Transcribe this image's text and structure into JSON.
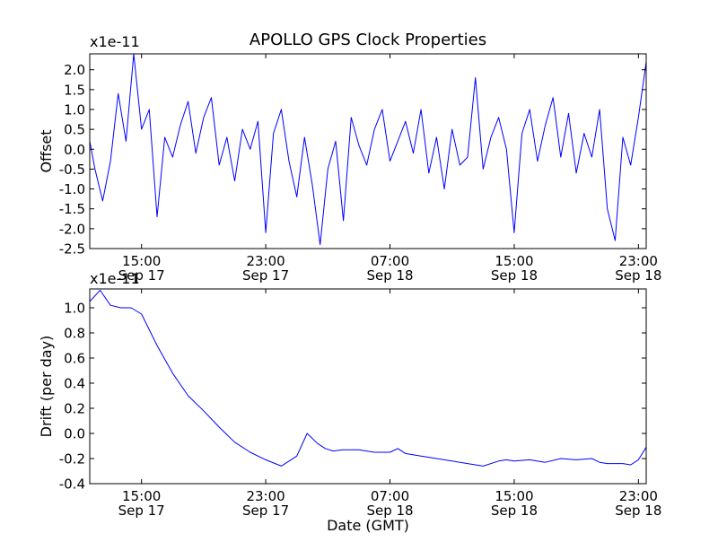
{
  "figure": {
    "title": "APOLLO GPS Clock Properties",
    "xlabel": "Date (GMT)"
  },
  "chart_data": [
    {
      "type": "line",
      "title": "APOLLO GPS Clock Properties",
      "xlabel": "",
      "ylabel": "Offset",
      "scale_label": "x1e-11",
      "line_color": "#0000ff",
      "xlim": [
        "2012-09-17 11:40",
        "2012-09-18 23:30"
      ],
      "ylim": [
        -2.5,
        2.4
      ],
      "xticks": [
        {
          "value": "2012-09-17 15:00",
          "time": "15:00",
          "date": "Sep 17"
        },
        {
          "value": "2012-09-17 23:00",
          "time": "23:00",
          "date": "Sep 17"
        },
        {
          "value": "2012-09-18 07:00",
          "time": "07:00",
          "date": "Sep 18"
        },
        {
          "value": "2012-09-18 15:00",
          "time": "15:00",
          "date": "Sep 18"
        },
        {
          "value": "2012-09-18 23:00",
          "time": "23:00",
          "date": "Sep 18"
        }
      ],
      "yticks": [
        -2.5,
        -2.0,
        -1.5,
        -1.0,
        -0.5,
        0.0,
        0.5,
        1.0,
        1.5,
        2.0
      ],
      "ytick_labels": [
        "-2.5",
        "-2.0",
        "-1.5",
        "-1.0",
        "-0.5",
        "0.0",
        "0.5",
        "1.0",
        "1.5",
        "2.0"
      ],
      "grid": false,
      "series": [
        {
          "x": [
            "2012-09-17 11:40",
            "2012-09-17 12:00",
            "2012-09-17 12:30",
            "2012-09-17 13:00",
            "2012-09-17 13:30",
            "2012-09-17 14:00",
            "2012-09-17 14:30",
            "2012-09-17 15:00",
            "2012-09-17 15:30",
            "2012-09-17 16:00",
            "2012-09-17 16:30",
            "2012-09-17 17:00",
            "2012-09-17 17:30",
            "2012-09-17 18:00",
            "2012-09-17 18:30",
            "2012-09-17 19:00",
            "2012-09-17 19:30",
            "2012-09-17 20:00",
            "2012-09-17 20:30",
            "2012-09-17 21:00",
            "2012-09-17 21:30",
            "2012-09-17 22:00",
            "2012-09-17 22:30",
            "2012-09-17 23:00",
            "2012-09-17 23:30",
            "2012-09-18 00:00",
            "2012-09-18 00:30",
            "2012-09-18 01:00",
            "2012-09-18 01:30",
            "2012-09-18 02:00",
            "2012-09-18 02:30",
            "2012-09-18 03:00",
            "2012-09-18 03:30",
            "2012-09-18 04:00",
            "2012-09-18 04:30",
            "2012-09-18 05:00",
            "2012-09-18 05:30",
            "2012-09-18 06:00",
            "2012-09-18 06:30",
            "2012-09-18 07:00",
            "2012-09-18 07:30",
            "2012-09-18 08:00",
            "2012-09-18 08:30",
            "2012-09-18 09:00",
            "2012-09-18 09:30",
            "2012-09-18 10:00",
            "2012-09-18 10:30",
            "2012-09-18 11:00",
            "2012-09-18 11:30",
            "2012-09-18 12:00",
            "2012-09-18 12:30",
            "2012-09-18 13:00",
            "2012-09-18 13:30",
            "2012-09-18 14:00",
            "2012-09-18 14:30",
            "2012-09-18 15:00",
            "2012-09-18 15:30",
            "2012-09-18 16:00",
            "2012-09-18 16:30",
            "2012-09-18 17:00",
            "2012-09-18 17:30",
            "2012-09-18 18:00",
            "2012-09-18 18:30",
            "2012-09-18 19:00",
            "2012-09-18 19:30",
            "2012-09-18 20:00",
            "2012-09-18 20:30",
            "2012-09-18 21:00",
            "2012-09-18 21:30",
            "2012-09-18 22:00",
            "2012-09-18 22:30",
            "2012-09-18 23:00",
            "2012-09-18 23:30"
          ],
          "y": [
            0.2,
            -0.5,
            -1.3,
            -0.3,
            1.4,
            0.2,
            2.4,
            0.5,
            1.0,
            -1.7,
            0.3,
            -0.2,
            0.6,
            1.2,
            -0.1,
            0.8,
            1.3,
            -0.4,
            0.3,
            -0.8,
            0.5,
            0.0,
            0.7,
            -2.1,
            0.4,
            1.0,
            -0.3,
            -1.2,
            0.3,
            -0.9,
            -2.4,
            -0.5,
            0.2,
            -1.8,
            0.8,
            0.1,
            -0.4,
            0.5,
            1.0,
            -0.3,
            0.2,
            0.7,
            -0.1,
            1.0,
            -0.6,
            0.3,
            -1.0,
            0.5,
            -0.4,
            -0.2,
            1.8,
            -0.5,
            0.3,
            0.8,
            0.0,
            -2.1,
            0.4,
            1.0,
            -0.3,
            0.6,
            1.3,
            -0.2,
            0.9,
            -0.6,
            0.4,
            -0.2,
            1.0,
            -1.5,
            -2.3,
            0.3,
            -0.4,
            0.8,
            2.2
          ]
        }
      ]
    },
    {
      "type": "line",
      "title": "",
      "xlabel": "Date (GMT)",
      "ylabel": "Drift (per day)",
      "scale_label": "x1e-11",
      "line_color": "#0000ff",
      "xlim": [
        "2012-09-17 11:40",
        "2012-09-18 23:30"
      ],
      "ylim": [
        -0.4,
        1.15
      ],
      "xticks": [
        {
          "value": "2012-09-17 15:00",
          "time": "15:00",
          "date": "Sep 17"
        },
        {
          "value": "2012-09-17 23:00",
          "time": "23:00",
          "date": "Sep 17"
        },
        {
          "value": "2012-09-18 07:00",
          "time": "07:00",
          "date": "Sep 18"
        },
        {
          "value": "2012-09-18 15:00",
          "time": "15:00",
          "date": "Sep 18"
        },
        {
          "value": "2012-09-18 23:00",
          "time": "23:00",
          "date": "Sep 18"
        }
      ],
      "yticks": [
        -0.4,
        -0.2,
        0.0,
        0.2,
        0.4,
        0.6,
        0.8,
        1.0
      ],
      "ytick_labels": [
        "-0.4",
        "-0.2",
        "0.0",
        "0.2",
        "0.4",
        "0.6",
        "0.8",
        "1.0"
      ],
      "grid": false,
      "series": [
        {
          "x": [
            "2012-09-17 11:40",
            "2012-09-17 12:20",
            "2012-09-17 13:00",
            "2012-09-17 13:40",
            "2012-09-17 14:20",
            "2012-09-17 15:00",
            "2012-09-17 16:00",
            "2012-09-17 17:00",
            "2012-09-17 18:00",
            "2012-09-17 19:00",
            "2012-09-17 20:00",
            "2012-09-17 21:00",
            "2012-09-17 22:00",
            "2012-09-17 23:00",
            "2012-09-18 00:00",
            "2012-09-18 01:00",
            "2012-09-18 01:40",
            "2012-09-18 02:20",
            "2012-09-18 02:50",
            "2012-09-18 03:20",
            "2012-09-18 04:00",
            "2012-09-18 05:00",
            "2012-09-18 06:00",
            "2012-09-18 07:00",
            "2012-09-18 07:30",
            "2012-09-18 08:00",
            "2012-09-18 09:00",
            "2012-09-18 10:00",
            "2012-09-18 11:00",
            "2012-09-18 12:00",
            "2012-09-18 13:00",
            "2012-09-18 14:00",
            "2012-09-18 14:30",
            "2012-09-18 15:00",
            "2012-09-18 16:00",
            "2012-09-18 17:00",
            "2012-09-18 18:00",
            "2012-09-18 19:00",
            "2012-09-18 20:00",
            "2012-09-18 20:30",
            "2012-09-18 21:00",
            "2012-09-18 22:00",
            "2012-09-18 22:30",
            "2012-09-18 23:00",
            "2012-09-18 23:30"
          ],
          "y": [
            1.05,
            1.14,
            1.02,
            1.0,
            1.0,
            0.95,
            0.7,
            0.48,
            0.3,
            0.18,
            0.05,
            -0.07,
            -0.15,
            -0.21,
            -0.26,
            -0.18,
            0.0,
            -0.08,
            -0.12,
            -0.14,
            -0.13,
            -0.13,
            -0.15,
            -0.15,
            -0.12,
            -0.16,
            -0.18,
            -0.2,
            -0.22,
            -0.24,
            -0.26,
            -0.22,
            -0.21,
            -0.22,
            -0.21,
            -0.23,
            -0.2,
            -0.21,
            -0.2,
            -0.23,
            -0.24,
            -0.24,
            -0.25,
            -0.21,
            -0.11
          ]
        }
      ]
    }
  ]
}
